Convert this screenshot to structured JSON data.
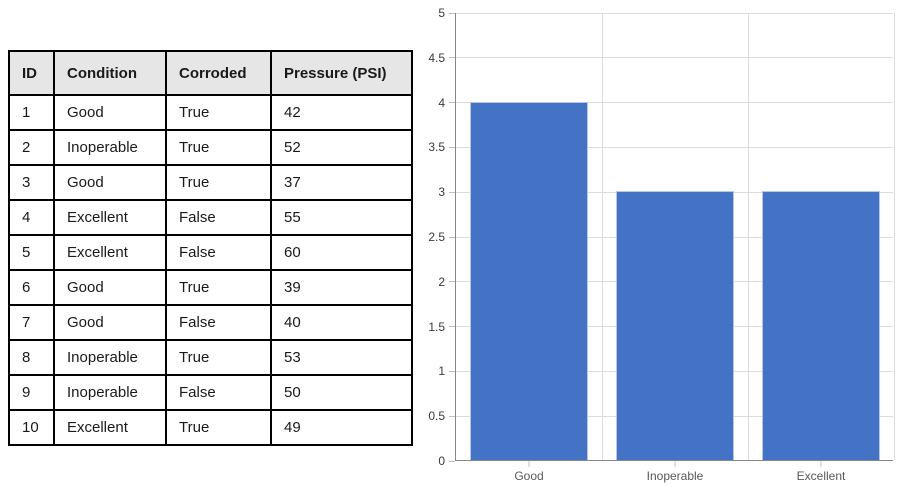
{
  "table": {
    "headers": [
      "ID",
      "Condition",
      "Corroded",
      "Pressure (PSI)"
    ],
    "rows": [
      [
        "1",
        "Good",
        "True",
        "42"
      ],
      [
        "2",
        "Inoperable",
        "True",
        "52"
      ],
      [
        "3",
        "Good",
        "True",
        "37"
      ],
      [
        "4",
        "Excellent",
        "False",
        "55"
      ],
      [
        "5",
        "Excellent",
        "False",
        "60"
      ],
      [
        "6",
        "Good",
        "True",
        "39"
      ],
      [
        "7",
        "Good",
        "False",
        "40"
      ],
      [
        "8",
        "Inoperable",
        "True",
        "53"
      ],
      [
        "9",
        "Inoperable",
        "False",
        "50"
      ],
      [
        "10",
        "Excellent",
        "True",
        "49"
      ]
    ]
  },
  "chart_data": {
    "type": "bar",
    "categories": [
      "Good",
      "Inoperable",
      "Excellent"
    ],
    "values": [
      4,
      3,
      3
    ],
    "title": "",
    "xlabel": "",
    "ylabel": "",
    "ylim": [
      0,
      5
    ],
    "ytick_step": 0.5,
    "grid": true,
    "legend": false,
    "bar_color": "#4472c4",
    "gridline_color": "#dcdcdc",
    "axis_color": "#888888"
  }
}
